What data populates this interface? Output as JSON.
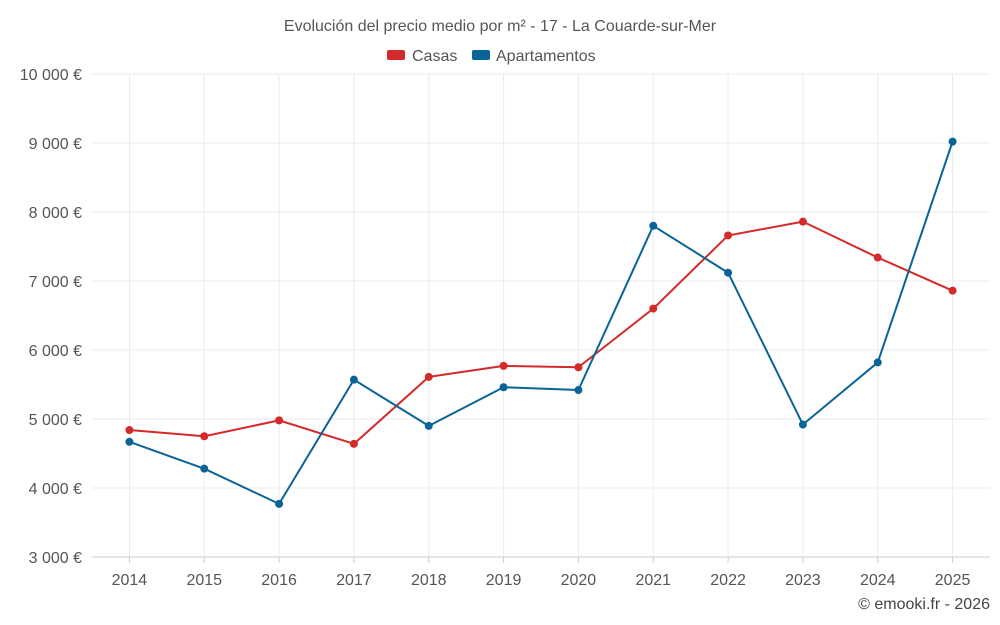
{
  "chart_data": {
    "type": "line",
    "title": "Evolución del precio medio por m² - 17 - La Couarde-sur-Mer",
    "categories": [
      "2014",
      "2015",
      "2016",
      "2017",
      "2018",
      "2019",
      "2020",
      "2021",
      "2022",
      "2023",
      "2024",
      "2025"
    ],
    "series": [
      {
        "name": "Casas",
        "color": "#d42a2a",
        "values": [
          4840,
          4750,
          4980,
          4640,
          5610,
          5770,
          5750,
          6600,
          7660,
          7860,
          7340,
          6860
        ]
      },
      {
        "name": "Apartamentos",
        "color": "#0a6496",
        "values": [
          4670,
          4280,
          3770,
          5570,
          4900,
          5460,
          5420,
          7800,
          7120,
          4920,
          5820,
          9020
        ]
      }
    ],
    "ylim": [
      3000,
      10000
    ],
    "yticks": [
      3000,
      4000,
      5000,
      6000,
      7000,
      8000,
      9000,
      10000
    ],
    "ytick_labels": [
      "3 000 €",
      "4 000 €",
      "5 000 €",
      "6 000 €",
      "7 000 €",
      "8 000 €",
      "9 000 €",
      "10 000 €"
    ],
    "xlabel": "",
    "ylabel": "",
    "grid": true,
    "legend": "top-center"
  },
  "credit": "© emooki.fr - 2026"
}
